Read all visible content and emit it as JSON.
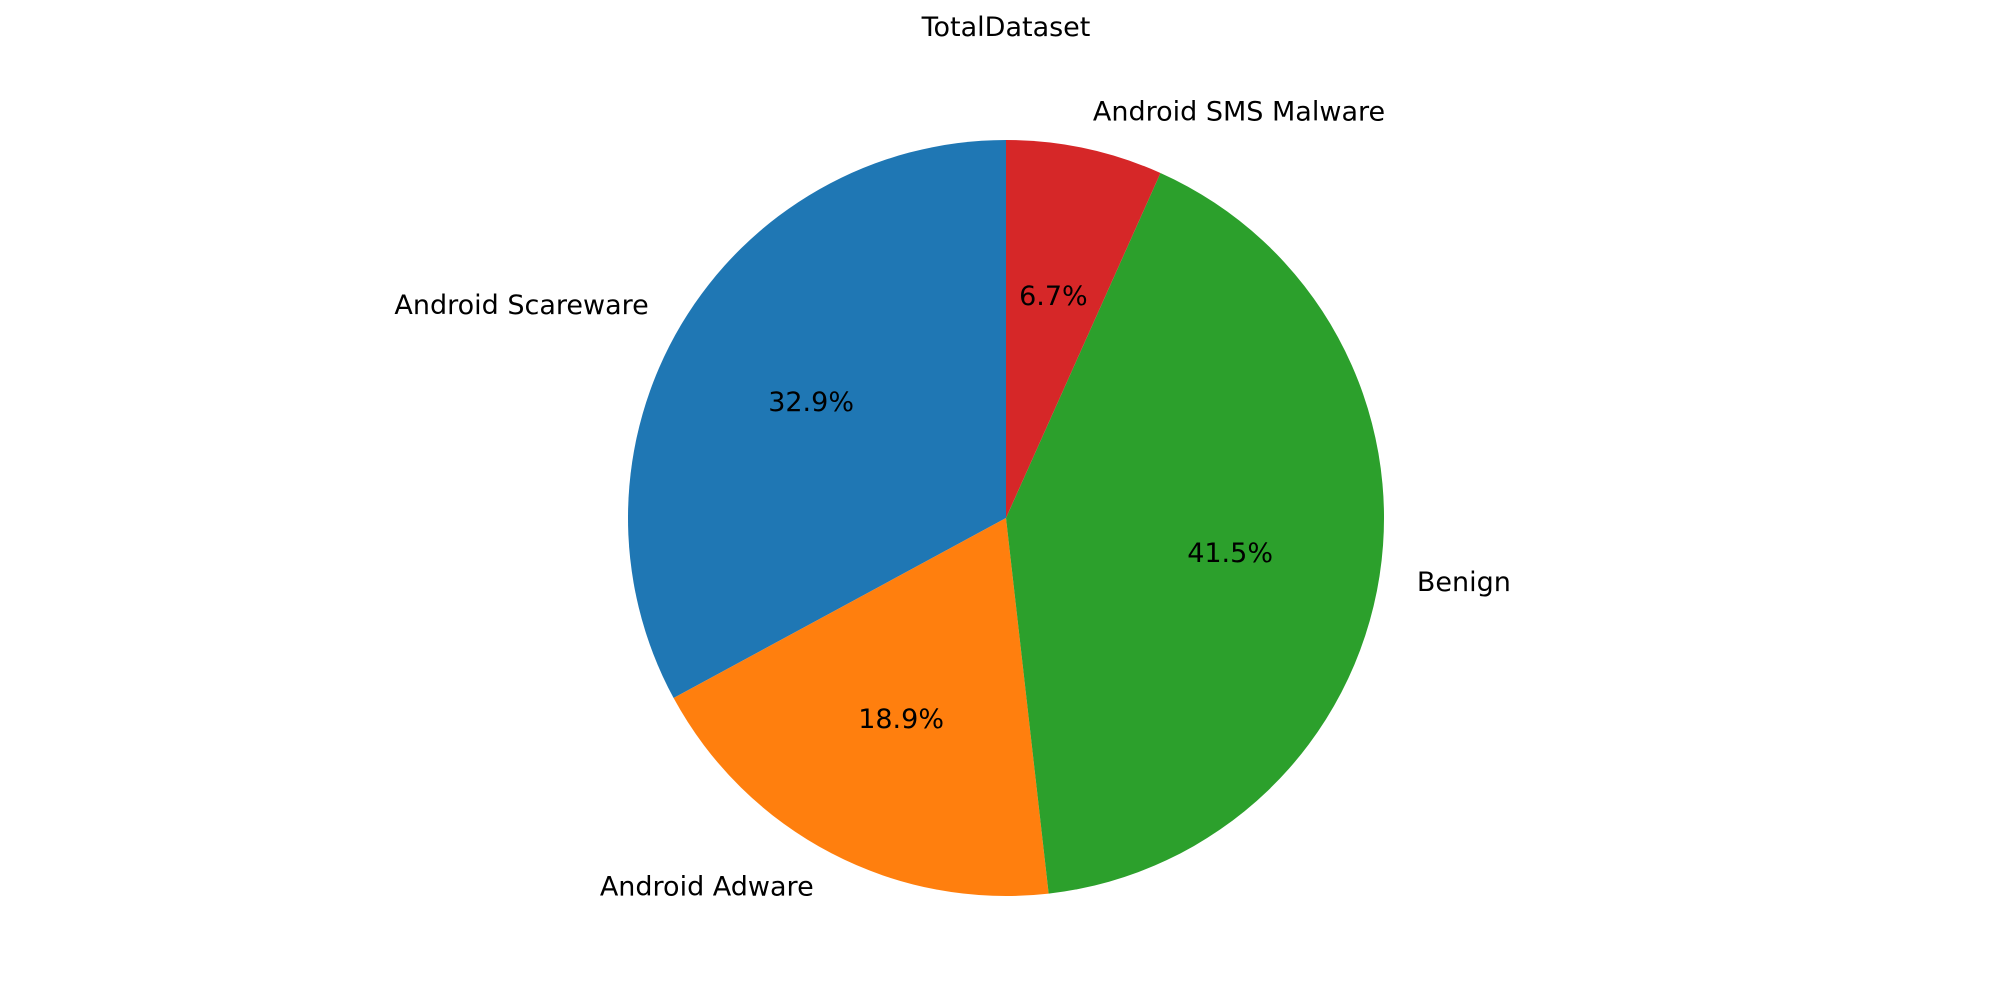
{
  "chart_data": {
    "type": "pie",
    "title": "TotalDataset",
    "start_angle_deg": 90,
    "direction": "counterclockwise",
    "legend": "none",
    "slices": [
      {
        "label": "Android Scareware",
        "value": 32.9,
        "pct_label": "32.9%",
        "color": "#1f77b4"
      },
      {
        "label": "Android Adware",
        "value": 18.9,
        "pct_label": "18.9%",
        "color": "#ff7f0e"
      },
      {
        "label": "Benign",
        "value": 41.5,
        "pct_label": "41.5%",
        "color": "#2ca02c"
      },
      {
        "label": "Android SMS Malware",
        "value": 6.7,
        "pct_label": "6.7%",
        "color": "#d62728"
      }
    ]
  }
}
